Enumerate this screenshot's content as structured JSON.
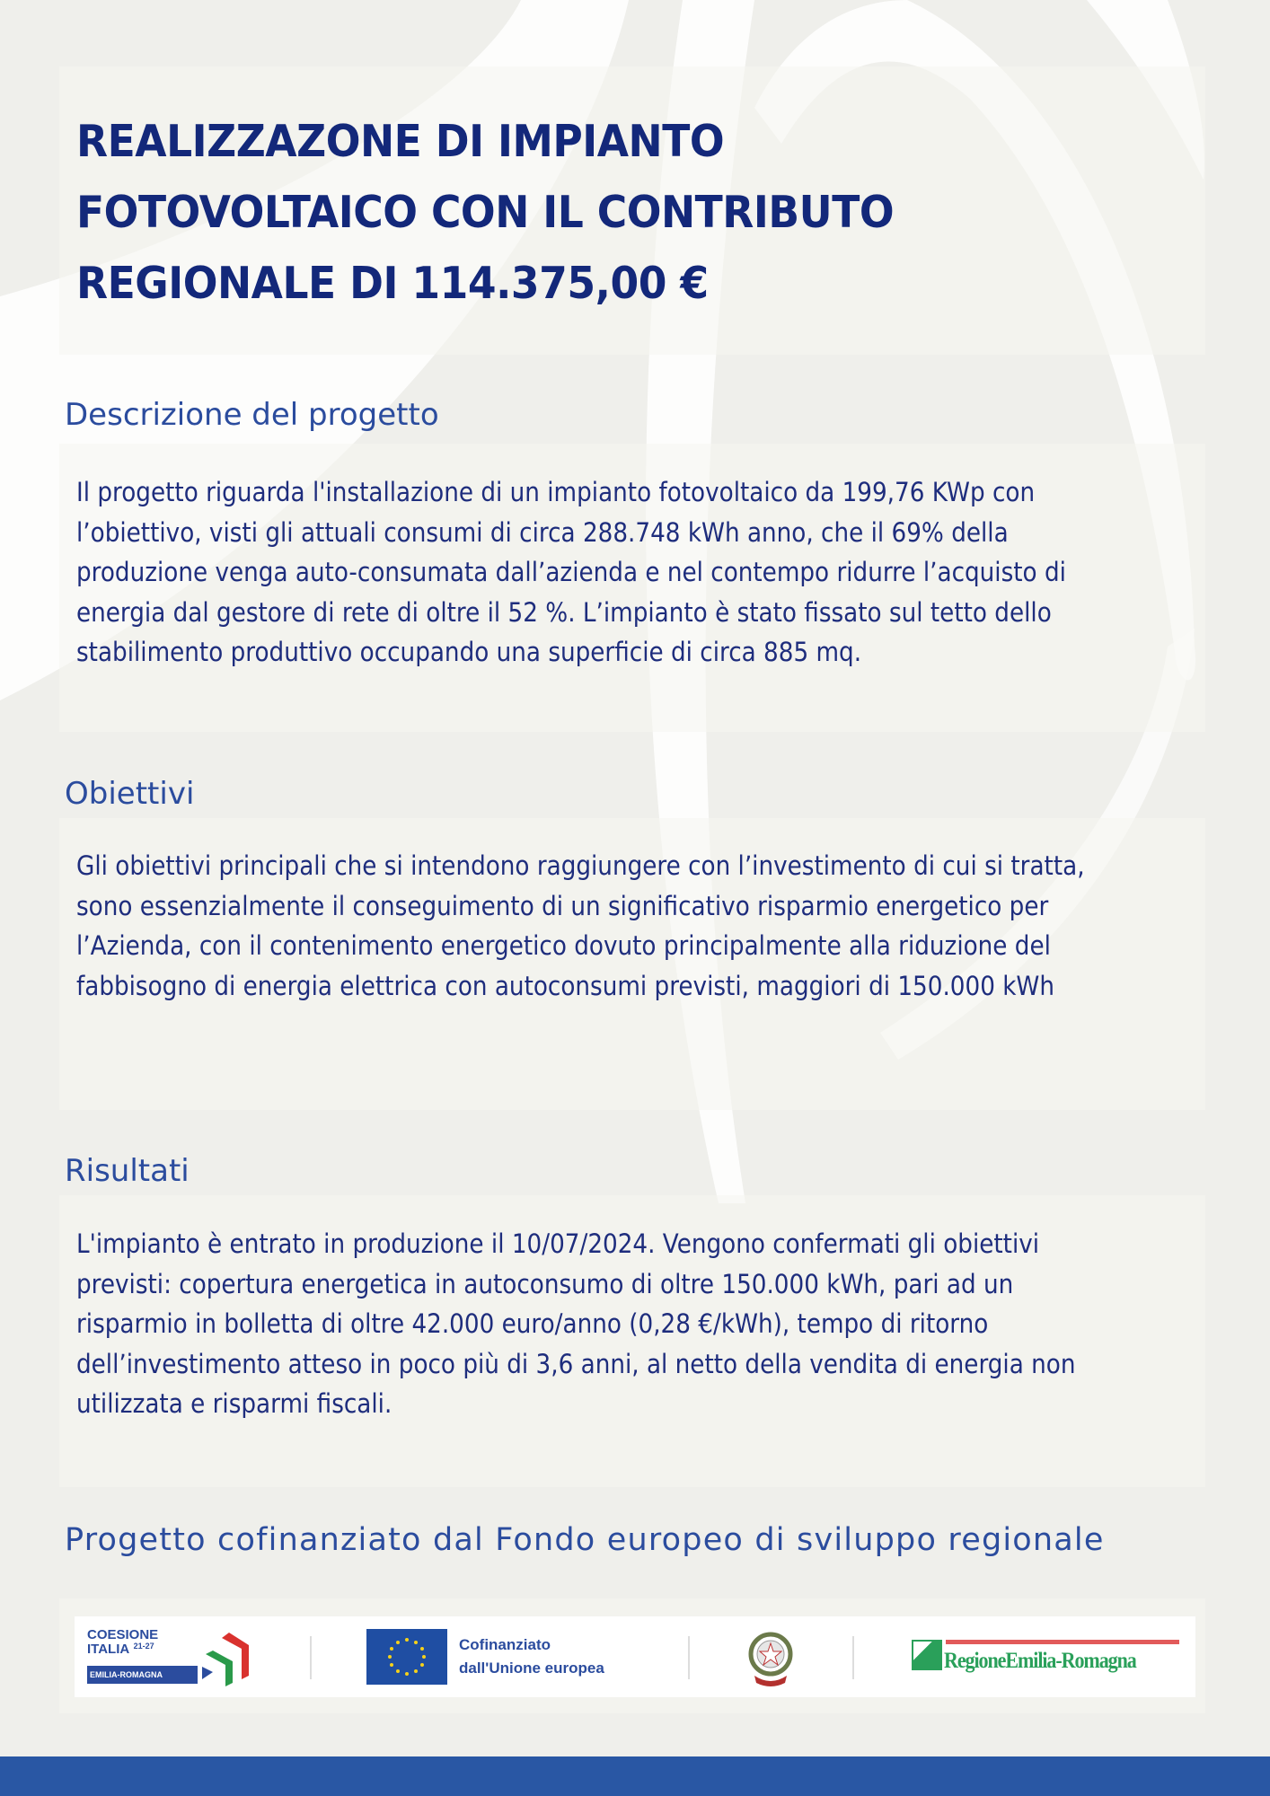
{
  "title": {
    "lines": [
      "REALIZZAZONE DI IMPIANTO",
      "FOTOVOLTAICO CON IL CONTRIBUTO",
      "REGIONALE DI 114.375,00 €"
    ]
  },
  "sections": [
    {
      "heading": "Descrizione del progetto",
      "lines": [
        "Il progetto riguarda l'installazione di un impianto fotovoltaico da 199,76 KWp con",
        "l’obiettivo, visti gli attuali consumi di circa 288.748 kWh anno, che il 69% della",
        "produzione venga auto-consumata dall’azienda e nel contempo ridurre l’acquisto di",
        "energia dal gestore di rete di oltre il 52 %. L’impianto è stato fissato sul tetto dello",
        "stabilimento produttivo occupando una superficie di circa 885 mq."
      ]
    },
    {
      "heading": "Obiettivi",
      "lines": [
        "Gli obiettivi principali che si intendono raggiungere con l’investimento di cui si tratta,",
        "sono essenzialmente il conseguimento di un significativo risparmio energetico per",
        "l’Azienda, con il contenimento energetico dovuto principalmente alla riduzione del",
        "fabbisogno di energia elettrica con autoconsumi previsti, maggiori di 150.000 kWh"
      ]
    },
    {
      "heading": "Risultati",
      "lines": [
        "L'impianto è entrato in produzione il 10/07/2024. Vengono confermati gli obiettivi",
        "previsti: copertura energetica in autoconsumo di oltre 150.000 kWh, pari ad un",
        "risparmio in bolletta di oltre 42.000 euro/anno (0,28 €/kWh), tempo di ritorno",
        "dell’investimento atteso in poco più di 3,6 anni, al netto della vendita di energia non",
        "utilizzata e risparmi fiscali."
      ]
    }
  ],
  "footer": {
    "text": "Progetto cofinanziato dal Fondo europeo di sviluppo regionale",
    "logos": {
      "coesione": {
        "line1": "COESIONE",
        "line2": "ITALIA",
        "years": "21-27",
        "region": "EMILIA-ROMAGNA"
      },
      "eu": {
        "line1": "Cofinanziato",
        "line2": "dall'Unione europea"
      },
      "italy_emblem": "italian-republic-emblem",
      "regione": "RegioneEmilia-Romagna"
    }
  },
  "colors": {
    "title": "#13287a",
    "heading": "#2b4c9e",
    "body": "#1e2d7d",
    "background": "#efefeb",
    "bottom_bar": "#2957a4"
  }
}
